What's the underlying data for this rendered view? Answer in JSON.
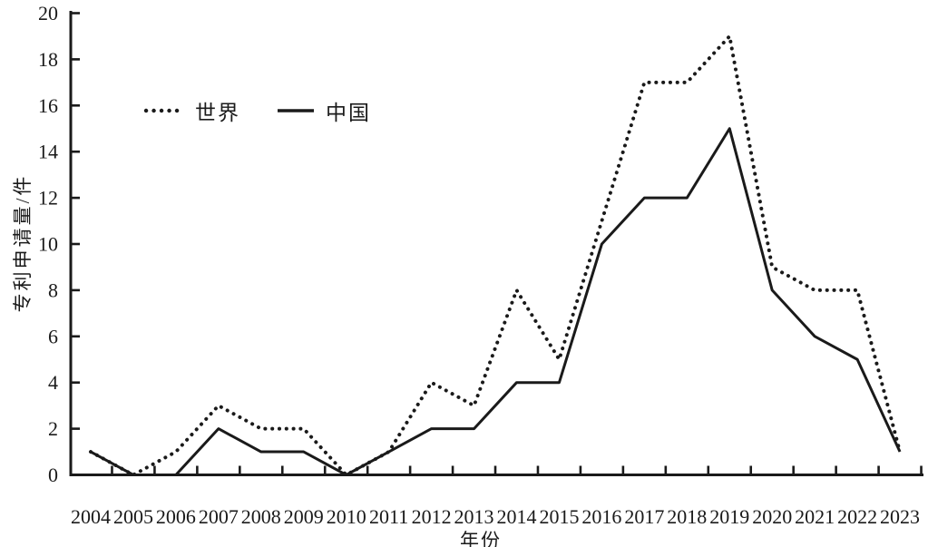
{
  "chart_data": {
    "type": "line",
    "title": "",
    "xlabel": "年份",
    "ylabel": "专利申请量/件",
    "x": [
      2004,
      2005,
      2006,
      2007,
      2008,
      2009,
      2010,
      2011,
      2012,
      2013,
      2014,
      2015,
      2016,
      2017,
      2018,
      2019,
      2020,
      2021,
      2022,
      2023
    ],
    "series": [
      {
        "name": "世界",
        "style": "dotted",
        "values": [
          1,
          0,
          1,
          3,
          2,
          2,
          0,
          1,
          4,
          3,
          8,
          5,
          11,
          17,
          17,
          19,
          9,
          8,
          8,
          1
        ]
      },
      {
        "name": "中国",
        "style": "solid",
        "values": [
          1,
          0,
          0,
          2,
          1,
          1,
          0,
          1,
          2,
          2,
          4,
          4,
          10,
          12,
          12,
          15,
          8,
          6,
          5,
          1
        ]
      }
    ],
    "ylim": [
      0,
      20
    ],
    "yticks": [
      0,
      2,
      4,
      6,
      8,
      10,
      12,
      14,
      16,
      18,
      20
    ],
    "grid": false,
    "legend_position": "upper-left",
    "line_color": "#1a1a1a",
    "background_color": "#ffffff"
  }
}
